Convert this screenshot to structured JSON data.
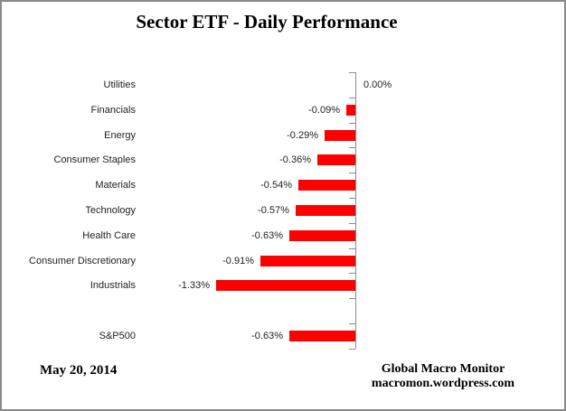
{
  "title": "Sector ETF - Daily Performance",
  "chart_data": {
    "type": "bar",
    "orientation": "horizontal",
    "title": "Sector ETF - Daily Performance",
    "xlabel": "",
    "ylabel": "",
    "value_unit": "percent",
    "xlim": [
      -1.9,
      0
    ],
    "grid": false,
    "legend": false,
    "bar_color": "#ff0000",
    "axis_color": "#8c8c8c",
    "categories": [
      "Utilities",
      "Financials",
      "Energy",
      "Consumer Staples",
      "Materials",
      "Technology",
      "Health Care",
      "Consumer Discretionary",
      "Industrials",
      "",
      "S&P500"
    ],
    "values": [
      0.0,
      -0.09,
      -0.29,
      -0.36,
      -0.54,
      -0.57,
      -0.63,
      -0.91,
      -1.33,
      null,
      -0.63
    ],
    "labels": [
      "0.00%",
      "-0.09%",
      "-0.29%",
      "-0.36%",
      "-0.54%",
      "-0.57%",
      "-0.63%",
      "-0.91%",
      "-1.33%",
      "",
      "-0.63%"
    ]
  },
  "footer": {
    "date": "May 20, 2014",
    "attribution_line1": "Global Macro Monitor",
    "attribution_line2": "macromon.wordpress.com"
  }
}
